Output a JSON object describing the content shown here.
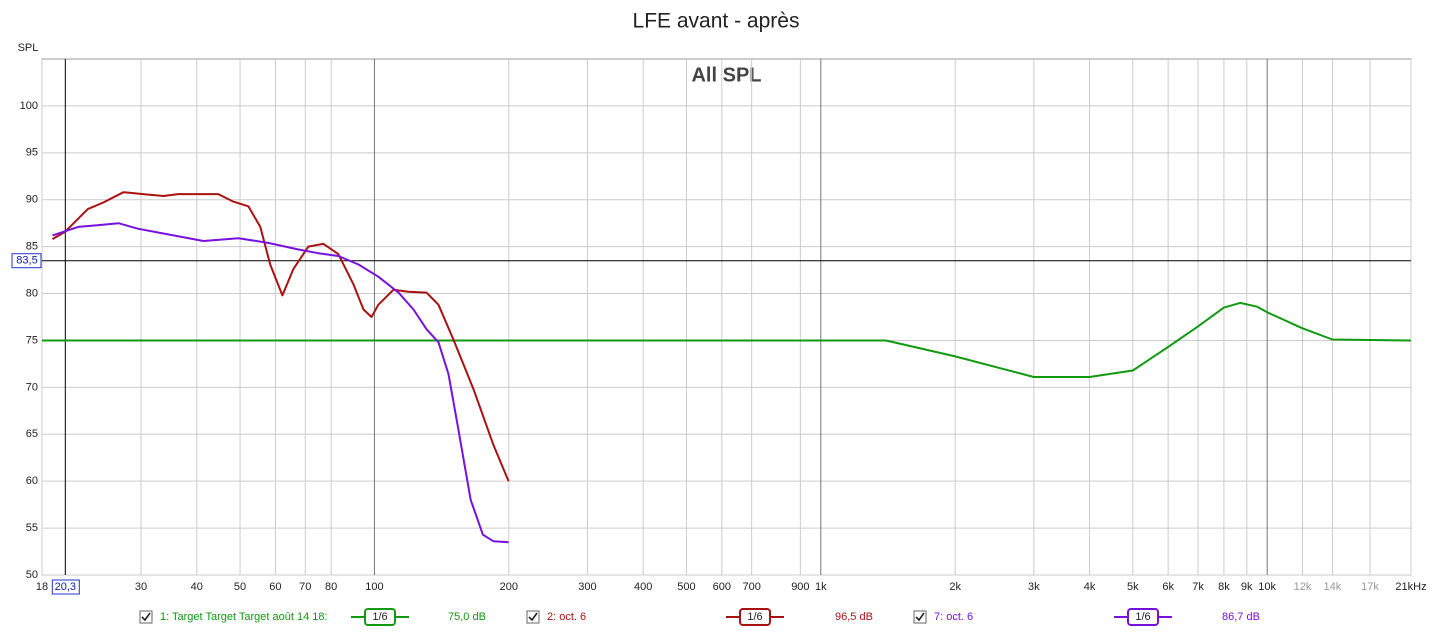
{
  "chart_data": {
    "type": "line",
    "title": "LFE avant - après",
    "subtitle": "All SPL",
    "y_label": "SPL",
    "log_x": true,
    "grid": true,
    "xlim": [
      18,
      21000
    ],
    "ylim": [
      50,
      105
    ],
    "yticks": [
      50,
      55,
      60,
      65,
      70,
      75,
      80,
      85,
      90,
      95,
      100
    ],
    "xticks": [
      18,
      30,
      40,
      50,
      60,
      70,
      80,
      100,
      200,
      300,
      400,
      500,
      600,
      700,
      900,
      {
        "value": 1000,
        "label": "1k"
      },
      {
        "value": 2000,
        "label": "2k"
      },
      {
        "value": 3000,
        "label": "3k"
      },
      {
        "value": 4000,
        "label": "4k"
      },
      {
        "value": 5000,
        "label": "5k"
      },
      {
        "value": 6000,
        "label": "6k"
      },
      {
        "value": 7000,
        "label": "7k"
      },
      {
        "value": 8000,
        "label": "8k"
      },
      {
        "value": 9000,
        "label": "9k"
      },
      {
        "value": 10000,
        "label": "10k"
      },
      {
        "value": 12000,
        "label": "12k"
      },
      {
        "value": 14000,
        "label": "14k"
      },
      {
        "value": 17000,
        "label": "17k"
      },
      {
        "value": 21000,
        "label": "21kHz"
      }
    ],
    "cursor": {
      "x": {
        "value": 20.3,
        "label": "20,3"
      },
      "y": {
        "value": 83.5,
        "label": "83,5"
      }
    },
    "series": [
      {
        "name": "1: Target Target Target août 14 18:",
        "color": "#119911",
        "smoothing": "1/6",
        "level": "75,0 dB",
        "x": [
          18,
          1400,
          2000,
          3000,
          4000,
          5000,
          6000,
          7000,
          8000,
          8700,
          9500,
          10000,
          12000,
          14000,
          21000
        ],
        "values": [
          75,
          75,
          73.3,
          71.1,
          71.1,
          71.8,
          74.3,
          76.5,
          78.5,
          79,
          78.6,
          78,
          76.3,
          75.1,
          75
        ]
      },
      {
        "name": "2: oct. 6",
        "color": "#aa1111",
        "smoothing": "1/6",
        "level": "96,5 dB",
        "x": [
          19,
          20.3,
          22.8,
          24.7,
          27.4,
          30.3,
          33.7,
          36.3,
          40.3,
          44.7,
          48.3,
          52.2,
          55.5,
          58.4,
          62.2,
          65.8,
          71.1,
          76.8,
          83,
          89.7,
          94.5,
          98.5,
          102,
          110.3,
          119.2,
          130.8,
          139.2,
          150.3,
          166.7,
          184.6,
          199.8
        ],
        "values": [
          85.8,
          86.6,
          89.0,
          89.7,
          90.8,
          90.6,
          90.4,
          90.6,
          90.6,
          90.6,
          89.8,
          89.3,
          87.1,
          83.1,
          79.8,
          82.6,
          85.0,
          85.3,
          84.2,
          81,
          78.3,
          77.5,
          78.8,
          80.4,
          80.2,
          80.1,
          78.8,
          75.1,
          69.8,
          63.9,
          60.0
        ]
      },
      {
        "name": "7: oct. 6",
        "color": "#7711dd",
        "smoothing": "1/6",
        "level": "86,7 dB",
        "x": [
          19,
          21.7,
          24.1,
          26.7,
          29.6,
          34.5,
          41.4,
          49.6,
          57.8,
          67.6,
          74.9,
          83,
          92.1,
          102,
          113.2,
          122.3,
          130.8,
          139.2,
          146.5,
          154.2,
          164.3,
          175,
          184.6,
          199.8
        ],
        "values": [
          86.2,
          87.1,
          87.3,
          87.5,
          86.9,
          86.3,
          85.6,
          85.9,
          85.4,
          84.7,
          84.3,
          84,
          83.1,
          81.8,
          80.1,
          78.3,
          76.2,
          74.8,
          71.4,
          65.5,
          58,
          54.3,
          53.6,
          53.5
        ]
      }
    ]
  }
}
